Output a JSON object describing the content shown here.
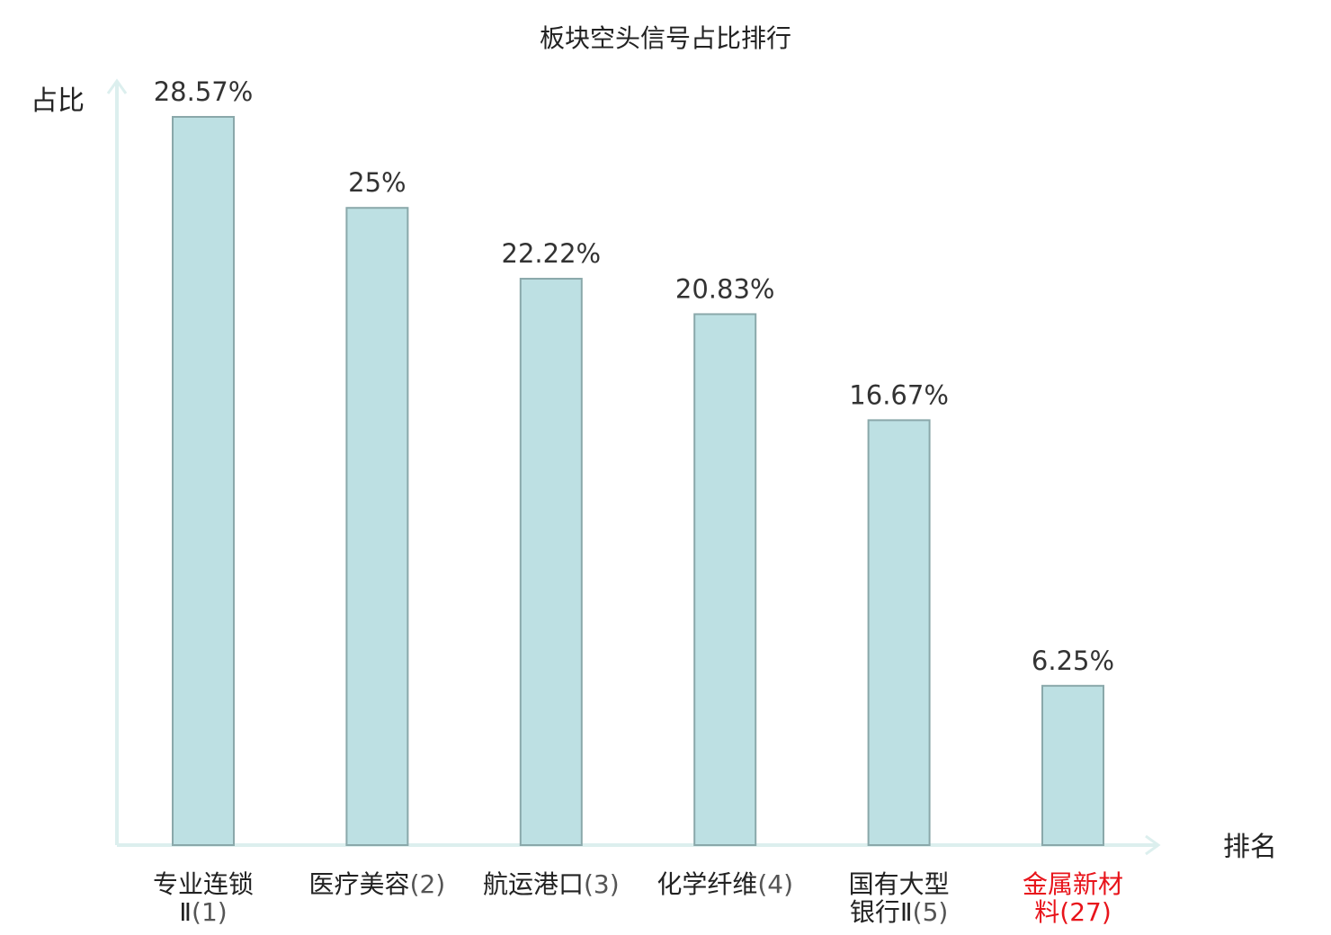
{
  "chart_data": {
    "type": "bar",
    "title": "板块空头信号占比排行",
    "xlabel": "排名",
    "ylabel": "占比",
    "ylim": [
      0,
      30
    ],
    "grid": false,
    "legend": "none",
    "categories": [
      {
        "lines": [
          "专业连锁",
          "Ⅱ"
        ],
        "rank": "(1)",
        "highlight": false
      },
      {
        "lines": [
          "医疗美容"
        ],
        "rank": "(2)",
        "highlight": false
      },
      {
        "lines": [
          "航运港口"
        ],
        "rank": "(3)",
        "highlight": false
      },
      {
        "lines": [
          "化学纤维"
        ],
        "rank": "(4)",
        "highlight": false
      },
      {
        "lines": [
          "国有大型",
          "银行Ⅱ"
        ],
        "rank": "(5)",
        "highlight": false
      },
      {
        "lines": [
          "金属新材",
          "料"
        ],
        "rank": "(27)",
        "highlight": true
      }
    ],
    "values": [
      28.57,
      25,
      22.22,
      20.83,
      16.67,
      6.25
    ],
    "value_labels": [
      "28.57%",
      "25%",
      "22.22%",
      "20.83%",
      "16.67%",
      "6.25%"
    ]
  },
  "colors": {
    "bar_fill": "#bde0e3",
    "bar_stroke": "#8aa8aa",
    "axis": "#dcefee",
    "highlight": "#e8141b"
  }
}
